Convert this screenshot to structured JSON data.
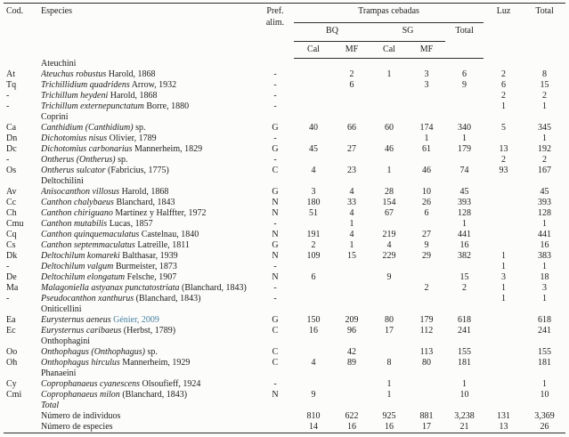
{
  "table": {
    "header": {
      "cod": "Cod.",
      "especies": "Especies",
      "pref_line1": "Pref.",
      "pref_line2": "alim.",
      "trampas": "Trampas cebadas",
      "bq": "BQ",
      "sg": "SG",
      "total_group": "Total",
      "cal1": "Cal",
      "mf1": "MF",
      "cal2": "Cal",
      "mf2": "MF",
      "luz": "Luz",
      "total": "Total"
    },
    "rows": [
      {
        "type": "group",
        "label": "Ateuchini"
      },
      {
        "type": "species",
        "cod": "At",
        "name": "Ateuchus robustus",
        "author": "Harold, 1868",
        "pref": "-",
        "values": [
          "",
          "2",
          "1",
          "3",
          "6",
          "2",
          "8"
        ]
      },
      {
        "type": "species",
        "cod": "Tq",
        "name": "Trichillidium quadridens",
        "author": "Arrow, 1932",
        "pref": "-",
        "values": [
          "",
          "6",
          "",
          "3",
          "9",
          "6",
          "15"
        ]
      },
      {
        "type": "species",
        "cod": "-",
        "name": "Trichillum heydeni",
        "author": "Harold, 1868",
        "pref": "-",
        "values": [
          "",
          "",
          "",
          "",
          "",
          "2",
          "2"
        ]
      },
      {
        "type": "species",
        "cod": "-",
        "name": "Trichillum externepunctatum",
        "author": "Borre, 1880",
        "pref": "-",
        "values": [
          "",
          "",
          "",
          "",
          "",
          "1",
          "1"
        ]
      },
      {
        "type": "group",
        "label": "Coprini"
      },
      {
        "type": "species",
        "cod": "Ca",
        "name": "Canthidium (Canthidium)",
        "author": "sp.",
        "pref": "G",
        "values": [
          "40",
          "66",
          "60",
          "174",
          "340",
          "5",
          "345"
        ]
      },
      {
        "type": "species",
        "cod": "Dn",
        "name": "Dichotomius nisus",
        "author": "Olivier, 1789",
        "pref": "-",
        "values": [
          "",
          "",
          "",
          "1",
          "1",
          "",
          "1"
        ]
      },
      {
        "type": "species",
        "cod": "Dc",
        "name": "Dichotomius carbonarius",
        "author": "Mannerheim, 1829",
        "pref": "G",
        "values": [
          "45",
          "27",
          "46",
          "61",
          "179",
          "13",
          "192"
        ]
      },
      {
        "type": "species",
        "cod": "-",
        "name": "Ontherus (Ontherus)",
        "author": "sp.",
        "pref": "-",
        "values": [
          "",
          "",
          "",
          "",
          "",
          "2",
          "2"
        ]
      },
      {
        "type": "species",
        "cod": "Os",
        "name": "Ontherus sulcator",
        "author": "(Fabricius, 1775)",
        "pref": "C",
        "values": [
          "4",
          "23",
          "1",
          "46",
          "74",
          "93",
          "167"
        ]
      },
      {
        "type": "group",
        "label": "Deltochilini"
      },
      {
        "type": "species",
        "cod": "Av",
        "name": "Anisocanthon villosus",
        "author": "Harold, 1868",
        "pref": "G",
        "values": [
          "3",
          "4",
          "28",
          "10",
          "45",
          "",
          "45"
        ]
      },
      {
        "type": "species",
        "cod": "Cc",
        "name": "Canthon chalybaeus",
        "author": "Blanchard, 1843",
        "pref": "N",
        "values": [
          "180",
          "33",
          "154",
          "26",
          "393",
          "",
          "393"
        ]
      },
      {
        "type": "species",
        "cod": "Ch",
        "name": "Canthon chiriguano",
        "author": "Martínez y Halffter, 1972",
        "pref": "N",
        "values": [
          "51",
          "4",
          "67",
          "6",
          "128",
          "",
          "128"
        ]
      },
      {
        "type": "species",
        "cod": "Cmu",
        "name": "Canthon mutabilis",
        "author": "Lucas, 1857",
        "pref": "-",
        "values": [
          "",
          "1",
          "",
          "",
          "1",
          "",
          "1"
        ]
      },
      {
        "type": "species",
        "cod": "Cq",
        "name": "Canthon quinquemaculatus",
        "author": "Castelnau, 1840",
        "pref": "N",
        "values": [
          "191",
          "4",
          "219",
          "27",
          "441",
          "",
          "441"
        ]
      },
      {
        "type": "species",
        "cod": "Cs",
        "name": "Canthon septemmaculatus",
        "author": "Latreille, 1811",
        "pref": "G",
        "values": [
          "2",
          "1",
          "4",
          "9",
          "16",
          "",
          "16"
        ]
      },
      {
        "type": "species",
        "cod": "Dk",
        "name": "Deltochilum komareki",
        "author": "Balthasar, 1939",
        "pref": "N",
        "values": [
          "109",
          "15",
          "229",
          "29",
          "382",
          "1",
          "383"
        ]
      },
      {
        "type": "species",
        "cod": "-",
        "name": "Deltochilum valgum",
        "author": "Burmeister, 1873",
        "pref": "-",
        "values": [
          "",
          "",
          "",
          "",
          "",
          "1",
          "1"
        ]
      },
      {
        "type": "species",
        "cod": "De",
        "name": "Deltochilum elongatum",
        "author": "Felsche, 1907",
        "pref": "N",
        "values": [
          "6",
          "",
          "9",
          "",
          "15",
          "3",
          "18"
        ]
      },
      {
        "type": "species",
        "cod": "Ma",
        "name": "Malagoniella astyanax punctatostriata",
        "author": "(Blanchard, 1843)",
        "pref": "-",
        "values": [
          "",
          "",
          "",
          "2",
          "2",
          "1",
          "3"
        ]
      },
      {
        "type": "species",
        "cod": "-",
        "name": "Pseudocanthon xanthurus",
        "author": "(Blanchard, 1843)",
        "pref": "-",
        "values": [
          "",
          "",
          "",
          "",
          "",
          "1",
          "1"
        ]
      },
      {
        "type": "group",
        "label": "Oniticellini"
      },
      {
        "type": "species",
        "cod": "Ea",
        "name": "Eurysternus aeneus",
        "author": "Génier, 2009",
        "cite": true,
        "pref": "G",
        "values": [
          "150",
          "209",
          "80",
          "179",
          "618",
          "",
          "618"
        ]
      },
      {
        "type": "species",
        "cod": "Ec",
        "name": "Eurysternus caribaeus",
        "author": "(Herbst, 1789)",
        "pref": "C",
        "values": [
          "16",
          "96",
          "17",
          "112",
          "241",
          "",
          "241"
        ]
      },
      {
        "type": "group",
        "label": "Onthophagini"
      },
      {
        "type": "species",
        "cod": "Oo",
        "name": "Onthophagus (Onthophagus)",
        "author": "sp.",
        "pref": "C",
        "values": [
          "",
          "42",
          "",
          "113",
          "155",
          "",
          "155"
        ]
      },
      {
        "type": "species",
        "cod": "Oh",
        "name": "Onthophagus hirculus",
        "author": "Mannerheim, 1929",
        "pref": "C",
        "values": [
          "4",
          "89",
          "8",
          "80",
          "181",
          "",
          "181"
        ]
      },
      {
        "type": "group",
        "label": "Phanaeini"
      },
      {
        "type": "species",
        "cod": "Cy",
        "name": "Coprophanaeus cyanescens",
        "author": "Olsoufieff, 1924",
        "pref": "-",
        "values": [
          "",
          "",
          "1",
          "",
          "1",
          "",
          "1"
        ]
      },
      {
        "type": "species",
        "cod": "Cmi",
        "name": "Coprophanaeus milon",
        "author": "(Blanchard, 1843)",
        "pref": "N",
        "values": [
          "9",
          "",
          "1",
          "",
          "10",
          "",
          "10"
        ]
      },
      {
        "type": "group",
        "label": "Total",
        "italic": true
      },
      {
        "type": "summary",
        "label": "Número de individuos",
        "values": [
          "810",
          "622",
          "925",
          "881",
          "3,238",
          "131",
          "3,369"
        ]
      },
      {
        "type": "summary",
        "label": "Número de especies",
        "values": [
          "14",
          "16",
          "16",
          "17",
          "21",
          "13",
          "26"
        ]
      }
    ]
  },
  "colors": {
    "citation": "#47809f",
    "text": "#1c1c1c",
    "rule": "#2d2d2d",
    "background": "#fcfcfb"
  }
}
